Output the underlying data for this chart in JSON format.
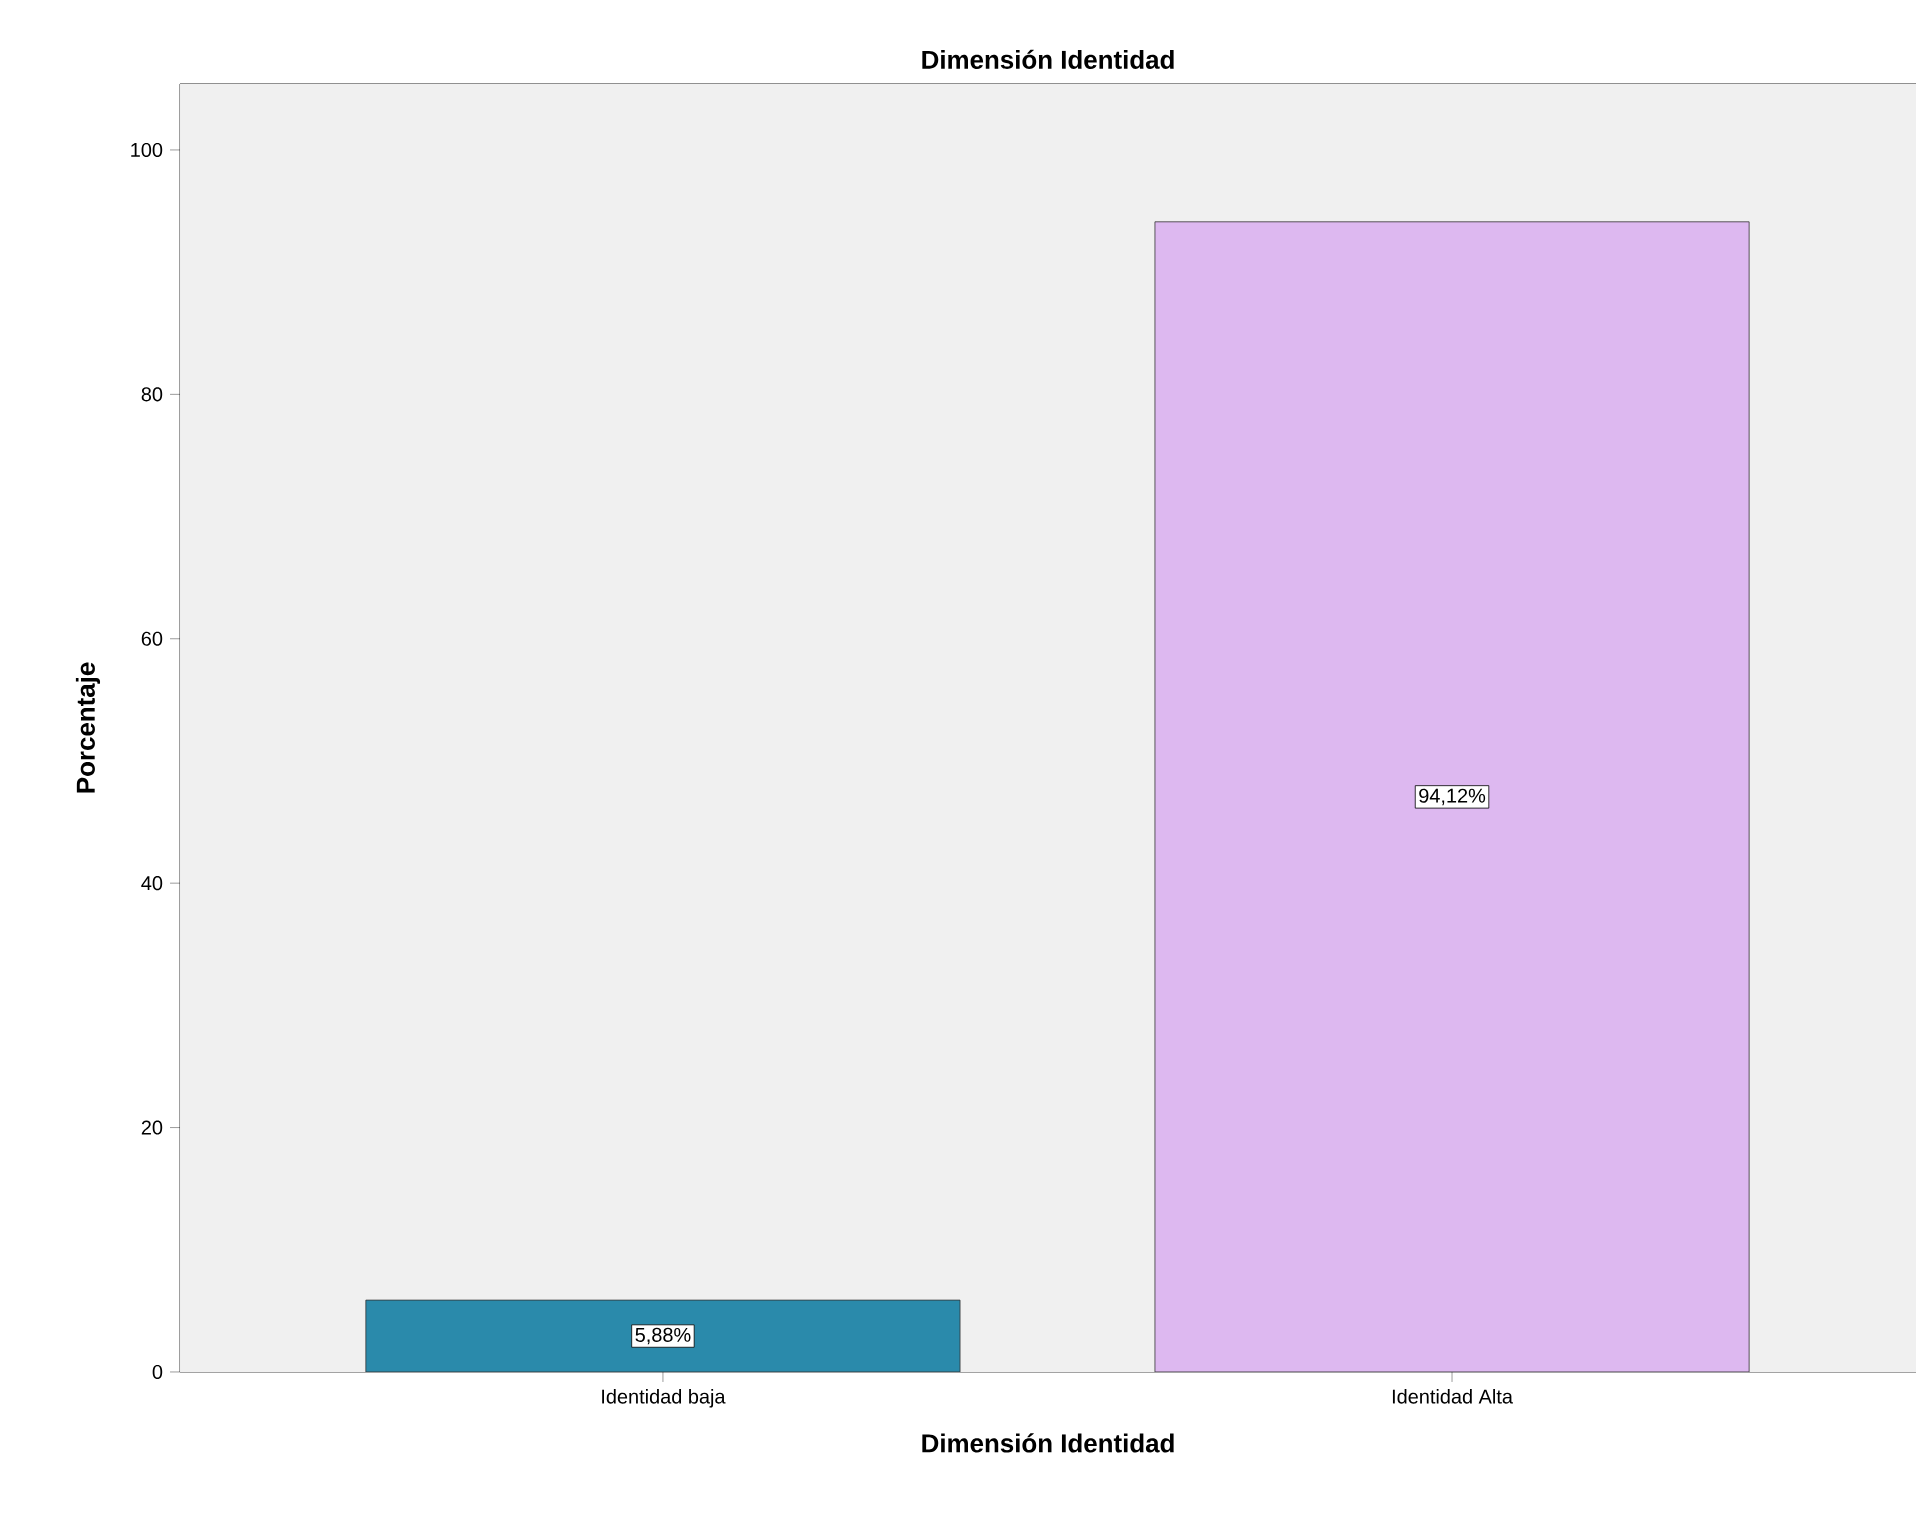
{
  "chart_data": {
    "type": "bar",
    "title": "Dimensión Identidad",
    "xlabel": "Dimensión Identidad",
    "ylabel": "Porcentaje",
    "categories": [
      "Identidad baja",
      "Identidad Alta"
    ],
    "values": [
      5.88,
      94.12
    ],
    "colors": [
      "#2a8aab",
      "#ddb8f0"
    ],
    "value_labels": [
      "5,88%",
      "94,12%"
    ],
    "ylim": [
      0,
      105.4
    ],
    "yticks": [
      0,
      20,
      40,
      60,
      80,
      100
    ]
  }
}
